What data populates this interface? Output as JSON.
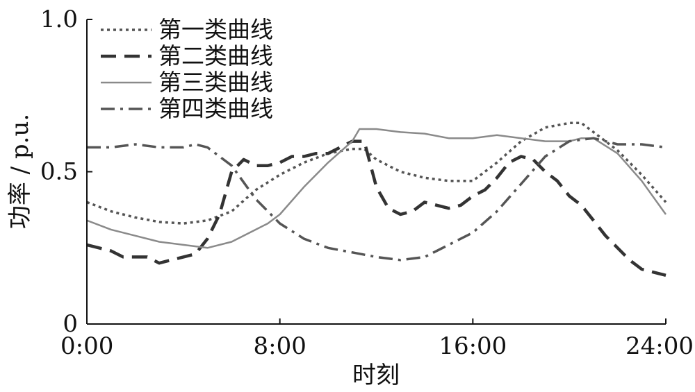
{
  "chart_data": {
    "type": "line",
    "title": "",
    "xlabel": "时刻",
    "ylabel": "功率 / p.u.",
    "xlim": [
      0,
      24
    ],
    "ylim": [
      0,
      1.0
    ],
    "x_ticks": [
      {
        "value": 0,
        "label": "0:00"
      },
      {
        "value": 8,
        "label": "8:00"
      },
      {
        "value": 16,
        "label": "16:00"
      },
      {
        "value": 24,
        "label": "24:00"
      }
    ],
    "y_ticks": [
      {
        "value": 0,
        "label": "0"
      },
      {
        "value": 0.5,
        "label": "0.5"
      },
      {
        "value": 1.0,
        "label": "1.0"
      }
    ],
    "grid": false,
    "legend_position": "top-left",
    "series": [
      {
        "name": "第一类曲线",
        "style": "dotted",
        "color": "#555555",
        "x": [
          0,
          1,
          2,
          3,
          4,
          5,
          6,
          7,
          8,
          9,
          10,
          11,
          11.5,
          12,
          13,
          14,
          15,
          16,
          17,
          18,
          19,
          20,
          20.5,
          21,
          22,
          23,
          24
        ],
        "y": [
          0.4,
          0.37,
          0.35,
          0.335,
          0.33,
          0.34,
          0.37,
          0.44,
          0.49,
          0.53,
          0.56,
          0.575,
          0.575,
          0.54,
          0.5,
          0.48,
          0.47,
          0.47,
          0.53,
          0.6,
          0.645,
          0.66,
          0.66,
          0.63,
          0.57,
          0.49,
          0.4
        ]
      },
      {
        "name": "第二类曲线",
        "style": "dashed",
        "color": "#333333",
        "x": [
          0,
          0.5,
          1,
          1.5,
          2,
          2.5,
          3,
          3.5,
          4,
          4.5,
          5,
          5.5,
          6,
          6.5,
          7,
          7.5,
          8,
          8.5,
          9,
          9.5,
          10,
          10.5,
          11,
          11.5,
          12,
          12.5,
          13,
          13.5,
          14,
          14.5,
          15,
          15.5,
          16,
          16.5,
          17,
          17.5,
          18,
          18.5,
          19,
          19.5,
          20,
          20.5,
          21,
          21.5,
          22,
          22.5,
          23,
          23.5,
          24
        ],
        "y": [
          0.26,
          0.25,
          0.24,
          0.22,
          0.22,
          0.22,
          0.2,
          0.21,
          0.22,
          0.23,
          0.28,
          0.36,
          0.5,
          0.54,
          0.52,
          0.52,
          0.53,
          0.55,
          0.55,
          0.56,
          0.56,
          0.58,
          0.6,
          0.6,
          0.45,
          0.38,
          0.36,
          0.37,
          0.4,
          0.39,
          0.38,
          0.39,
          0.42,
          0.44,
          0.48,
          0.53,
          0.55,
          0.54,
          0.5,
          0.47,
          0.42,
          0.39,
          0.34,
          0.29,
          0.25,
          0.21,
          0.18,
          0.17,
          0.16
        ]
      },
      {
        "name": "第三类曲线",
        "style": "solid",
        "color": "#8a8a8a",
        "x": [
          0,
          1,
          2,
          3,
          4,
          5,
          6,
          7,
          7.5,
          8,
          9,
          10,
          11,
          11.3,
          12,
          13,
          14,
          15,
          16,
          17,
          18,
          19,
          20,
          20.5,
          21,
          22,
          23,
          24
        ],
        "y": [
          0.34,
          0.31,
          0.29,
          0.27,
          0.26,
          0.25,
          0.27,
          0.31,
          0.33,
          0.36,
          0.45,
          0.53,
          0.6,
          0.64,
          0.64,
          0.63,
          0.625,
          0.61,
          0.61,
          0.62,
          0.61,
          0.6,
          0.6,
          0.61,
          0.61,
          0.56,
          0.47,
          0.36
        ]
      },
      {
        "name": "第四类曲线",
        "style": "dash-dot",
        "color": "#555555",
        "x": [
          0,
          1,
          2,
          3,
          4,
          4.5,
          5,
          6,
          7,
          8,
          9,
          10,
          11,
          12,
          13,
          14,
          15,
          16,
          17,
          18,
          19,
          20,
          21,
          22,
          23,
          24
        ],
        "y": [
          0.58,
          0.58,
          0.59,
          0.58,
          0.58,
          0.59,
          0.58,
          0.52,
          0.41,
          0.33,
          0.28,
          0.25,
          0.235,
          0.22,
          0.21,
          0.22,
          0.26,
          0.3,
          0.37,
          0.46,
          0.55,
          0.6,
          0.61,
          0.59,
          0.59,
          0.58
        ]
      }
    ]
  }
}
